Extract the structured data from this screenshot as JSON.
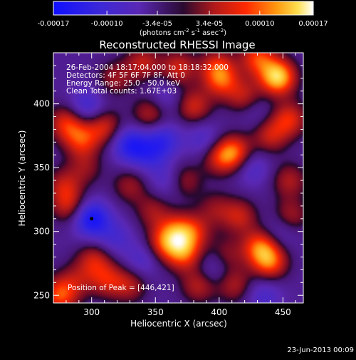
{
  "chart_data": {
    "type": "heatmap",
    "title": "Reconstructed RHESSI Image",
    "xlabel": "Heliocentric X (arcsec)",
    "ylabel": "Heliocentric Y (arcsec)",
    "xlim": [
      270,
      466
    ],
    "ylim": [
      244,
      440
    ],
    "x_ticks": [
      300,
      350,
      400,
      450
    ],
    "y_ticks": [
      250,
      300,
      350,
      400
    ],
    "colorbar": {
      "range": [
        -0.00017,
        0.00017
      ],
      "tick_values": [
        -0.00017,
        -0.0001,
        -3.4e-05,
        3.4e-05,
        0.0001,
        0.00017
      ],
      "tick_labels": [
        "-0.00017",
        "-0.00010",
        "-3.4e-05",
        "3.4e-05",
        "0.00010",
        "0.00017"
      ],
      "units": "(photons cm",
      "units_exp1": "-2",
      "units_mid": " s",
      "units_exp2": "-1",
      "units_mid2": " asec",
      "units_exp3": "-2",
      "units_end": ")"
    },
    "annotations": [
      "26-Feb-2004 18:17:04.000 to 18:18:32.000",
      "Detectors: 4F 5F 6F 7F 8F, Att 0",
      "Energy Range: 25.0 - 50.0 keV",
      "Clean     Total counts: 1.67E+03"
    ],
    "peak_label": "Position of Peak = [446,421]",
    "peak": [
      446,
      421
    ],
    "min_marker": [
      300,
      310
    ],
    "footer": "23-Jun-2013 00:09",
    "blobs": [
      {
        "x": 446,
        "y": 421,
        "v": 1.0
      },
      {
        "x": 430,
        "y": 436,
        "v": 0.6
      },
      {
        "x": 402,
        "y": 418,
        "v": 0.55
      },
      {
        "x": 398,
        "y": 430,
        "v": 0.45
      },
      {
        "x": 340,
        "y": 432,
        "v": 0.45
      },
      {
        "x": 368,
        "y": 428,
        "v": 0.5
      },
      {
        "x": 318,
        "y": 420,
        "v": 0.35
      },
      {
        "x": 280,
        "y": 385,
        "v": 0.55
      },
      {
        "x": 310,
        "y": 382,
        "v": 0.5
      },
      {
        "x": 292,
        "y": 372,
        "v": 0.55
      },
      {
        "x": 346,
        "y": 392,
        "v": 0.45
      },
      {
        "x": 380,
        "y": 398,
        "v": 0.5
      },
      {
        "x": 420,
        "y": 405,
        "v": 0.45
      },
      {
        "x": 455,
        "y": 388,
        "v": 0.55
      },
      {
        "x": 440,
        "y": 375,
        "v": 0.45
      },
      {
        "x": 400,
        "y": 358,
        "v": 0.45
      },
      {
        "x": 412,
        "y": 362,
        "v": 0.65
      },
      {
        "x": 372,
        "y": 340,
        "v": 0.4
      },
      {
        "x": 330,
        "y": 336,
        "v": 0.35
      },
      {
        "x": 282,
        "y": 320,
        "v": 0.45
      },
      {
        "x": 278,
        "y": 336,
        "v": 0.4
      },
      {
        "x": 295,
        "y": 350,
        "v": 0.3
      },
      {
        "x": 348,
        "y": 316,
        "v": 0.35
      },
      {
        "x": 366,
        "y": 300,
        "v": 0.55
      },
      {
        "x": 356,
        "y": 290,
        "v": 0.5
      },
      {
        "x": 372,
        "y": 283,
        "v": 0.65
      },
      {
        "x": 380,
        "y": 300,
        "v": 0.45
      },
      {
        "x": 397,
        "y": 318,
        "v": 0.3
      },
      {
        "x": 416,
        "y": 312,
        "v": 0.45
      },
      {
        "x": 432,
        "y": 288,
        "v": 0.65
      },
      {
        "x": 440,
        "y": 276,
        "v": 0.65
      },
      {
        "x": 456,
        "y": 312,
        "v": 0.4
      },
      {
        "x": 455,
        "y": 340,
        "v": 0.4
      },
      {
        "x": 302,
        "y": 278,
        "v": 0.45
      },
      {
        "x": 312,
        "y": 262,
        "v": 0.45
      },
      {
        "x": 288,
        "y": 262,
        "v": 0.3
      },
      {
        "x": 275,
        "y": 250,
        "v": 0.65
      },
      {
        "x": 330,
        "y": 258,
        "v": 0.4
      },
      {
        "x": 384,
        "y": 258,
        "v": 0.45
      },
      {
        "x": 412,
        "y": 258,
        "v": 0.4
      },
      {
        "x": 406,
        "y": 282,
        "v": 0.3
      },
      {
        "x": 296,
        "y": 398,
        "v": -0.4
      },
      {
        "x": 330,
        "y": 368,
        "v": -0.6
      },
      {
        "x": 356,
        "y": 372,
        "v": -0.45
      },
      {
        "x": 345,
        "y": 360,
        "v": -0.35
      },
      {
        "x": 360,
        "y": 340,
        "v": -0.3
      },
      {
        "x": 300,
        "y": 310,
        "v": -0.75
      },
      {
        "x": 318,
        "y": 295,
        "v": -0.3
      },
      {
        "x": 388,
        "y": 372,
        "v": -0.3
      },
      {
        "x": 426,
        "y": 350,
        "v": -0.3
      },
      {
        "x": 448,
        "y": 300,
        "v": -0.25
      },
      {
        "x": 340,
        "y": 278,
        "v": -0.3
      },
      {
        "x": 395,
        "y": 270,
        "v": -0.25
      },
      {
        "x": 435,
        "y": 250,
        "v": -0.3
      },
      {
        "x": 358,
        "y": 405,
        "v": -0.25
      },
      {
        "x": 428,
        "y": 395,
        "v": -0.2
      }
    ]
  }
}
